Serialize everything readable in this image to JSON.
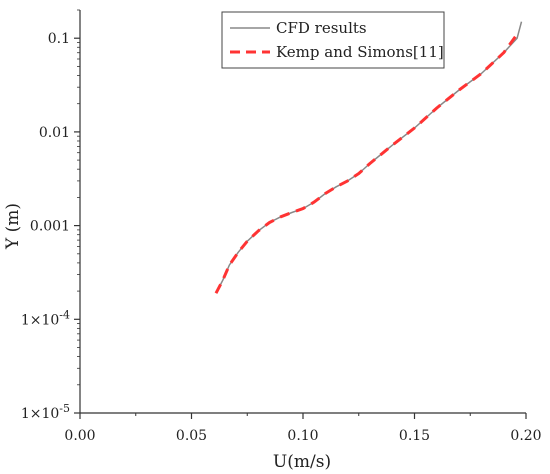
{
  "chart_data": {
    "type": "line",
    "xlabel": "U(m/s)",
    "ylabel": "Y (m)",
    "xlim": [
      0.0,
      0.2
    ],
    "ylim": [
      1e-05,
      0.2
    ],
    "yscale": "log",
    "x_ticks": [
      "0.00",
      "0.05",
      "0.10",
      "0.15",
      "0.20"
    ],
    "x_tick_values": [
      0.0,
      0.05,
      0.1,
      0.15,
      0.2
    ],
    "y_ticks": [
      "1x10-5",
      "1x10-4",
      "0.001",
      "0.01",
      "0.1"
    ],
    "y_tick_values": [
      1e-05,
      0.0001,
      0.001,
      0.01,
      0.1
    ],
    "grid": false,
    "legend_position": "top-right",
    "series": [
      {
        "name": "CFD results",
        "color": "#888888",
        "style": "solid",
        "x": [
          0.061,
          0.064,
          0.067,
          0.071,
          0.075,
          0.08,
          0.085,
          0.09,
          0.095,
          0.1,
          0.105,
          0.11,
          0.115,
          0.12,
          0.125,
          0.13,
          0.14,
          0.15,
          0.16,
          0.17,
          0.18,
          0.19,
          0.196,
          0.198
        ],
        "y": [
          0.00019,
          0.00026,
          0.00038,
          0.00052,
          0.00068,
          0.00088,
          0.00108,
          0.00124,
          0.00138,
          0.00152,
          0.00178,
          0.0022,
          0.0026,
          0.003,
          0.0036,
          0.0046,
          0.0072,
          0.011,
          0.018,
          0.028,
          0.042,
          0.07,
          0.1,
          0.15
        ]
      },
      {
        "name": "Kemp and Simons[11]",
        "color": "#ff3333",
        "style": "dashed",
        "x": [
          0.061,
          0.064,
          0.067,
          0.071,
          0.075,
          0.08,
          0.085,
          0.09,
          0.095,
          0.1,
          0.105,
          0.11,
          0.115,
          0.12,
          0.125,
          0.13,
          0.14,
          0.15,
          0.16,
          0.17,
          0.18,
          0.19,
          0.196
        ],
        "y": [
          0.00019,
          0.00026,
          0.00038,
          0.00052,
          0.00068,
          0.00088,
          0.00108,
          0.00124,
          0.00138,
          0.00152,
          0.00178,
          0.0022,
          0.0026,
          0.003,
          0.0036,
          0.0046,
          0.0072,
          0.011,
          0.018,
          0.028,
          0.042,
          0.07,
          0.11
        ]
      }
    ]
  }
}
